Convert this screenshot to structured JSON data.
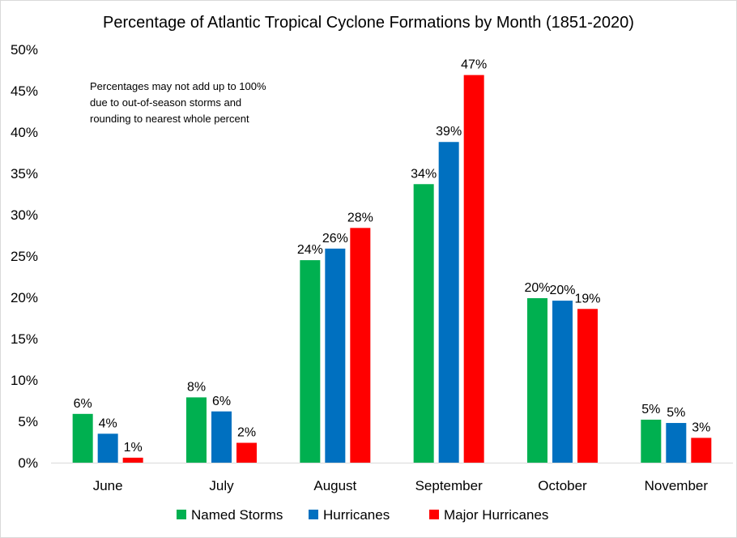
{
  "chart_data": {
    "type": "bar",
    "title": "Percentage of Atlantic Tropical Cyclone Formations by Month (1851-2020)",
    "xlabel": "",
    "ylabel": "",
    "ylim": [
      0,
      50
    ],
    "yticks": [
      "0%",
      "5%",
      "10%",
      "15%",
      "20%",
      "25%",
      "30%",
      "35%",
      "40%",
      "45%",
      "50%"
    ],
    "grid": false,
    "legend_position": "bottom",
    "categories": [
      "June",
      "July",
      "August",
      "September",
      "October",
      "November"
    ],
    "series": [
      {
        "name": "Named Storms",
        "color": "#00b050",
        "values": [
          5.9,
          7.9,
          24.5,
          33.7,
          19.9,
          5.2
        ],
        "labels": [
          "6%",
          "8%",
          "24%",
          "34%",
          "20%",
          "5%"
        ]
      },
      {
        "name": "Hurricanes",
        "color": "#0070c0",
        "values": [
          3.5,
          6.2,
          25.9,
          38.8,
          19.6,
          4.8
        ],
        "labels": [
          "4%",
          "6%",
          "26%",
          "39%",
          "20%",
          "5%"
        ]
      },
      {
        "name": "Major Hurricanes",
        "color": "#ff0000",
        "values": [
          0.6,
          2.4,
          28.4,
          46.9,
          18.6,
          3.0
        ],
        "labels": [
          "1%",
          "2%",
          "28%",
          "47%",
          "19%",
          "3%"
        ]
      }
    ],
    "annotation": [
      "Percentages may not add up to 100%",
      "due to out-of-season storms and",
      "rounding to nearest whole percent"
    ]
  }
}
